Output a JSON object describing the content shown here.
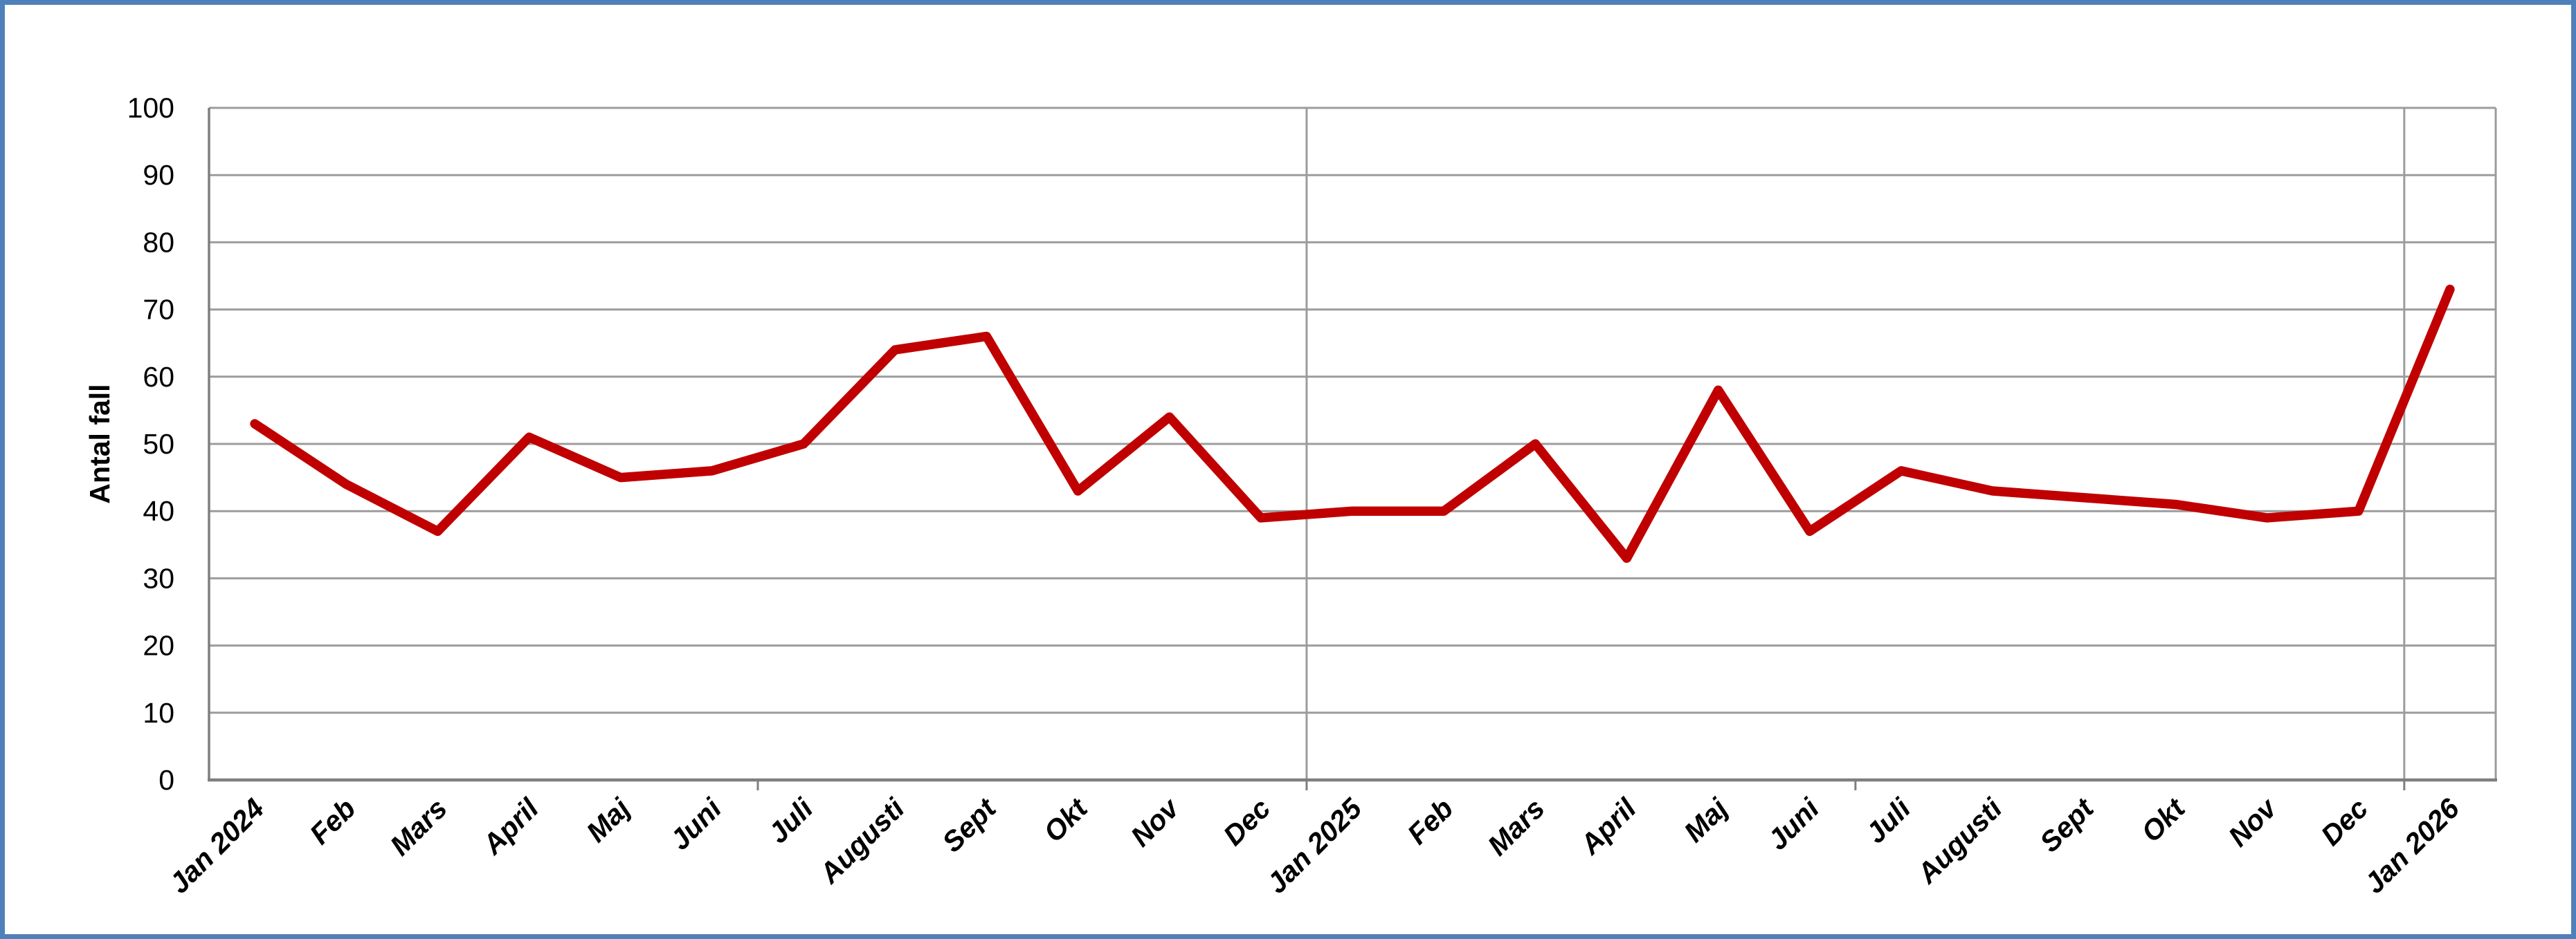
{
  "frame": {
    "border_color": "#4E80BC",
    "background": "#FFFFFF"
  },
  "chart_data": {
    "type": "line",
    "title": "",
    "xlabel": "",
    "ylabel": "Antal fall",
    "legend": "none",
    "grid": "horizontal major on; vertical gridlines at year boundaries",
    "categories": [
      "Jan 2024",
      "Feb",
      "Mars",
      "April",
      "Maj",
      "Juni",
      "Juli",
      "Augusti",
      "Sept",
      "Okt",
      "Nov",
      "Dec",
      "Jan 2025",
      "Feb",
      "Mars",
      "April",
      "Maj",
      "Juni",
      "Juli",
      "Augusti",
      "Sept",
      "Okt",
      "Nov",
      "Dec",
      "Jan 2026"
    ],
    "series": [
      {
        "name": "Antal fall",
        "color": "#C00000",
        "values": [
          53,
          44,
          37,
          51,
          45,
          46,
          50,
          64,
          66,
          43,
          54,
          39,
          40,
          40,
          50,
          33,
          58,
          37,
          46,
          43,
          42,
          41,
          39,
          40,
          73
        ]
      }
    ],
    "ylim": [
      0,
      100
    ],
    "yticks": [
      0,
      10,
      20,
      30,
      40,
      50,
      60,
      70,
      80,
      90,
      100
    ],
    "x_label_rotation_deg": -45,
    "year_boundary_after_index": [
      11,
      23
    ],
    "half_year_tick_after_index": [
      5,
      11,
      17,
      23
    ],
    "colors": {
      "series_line": "#C00000",
      "gridline": "#9C9C9C",
      "axis_line": "#7F7F7F",
      "label_text": "#000000"
    }
  }
}
